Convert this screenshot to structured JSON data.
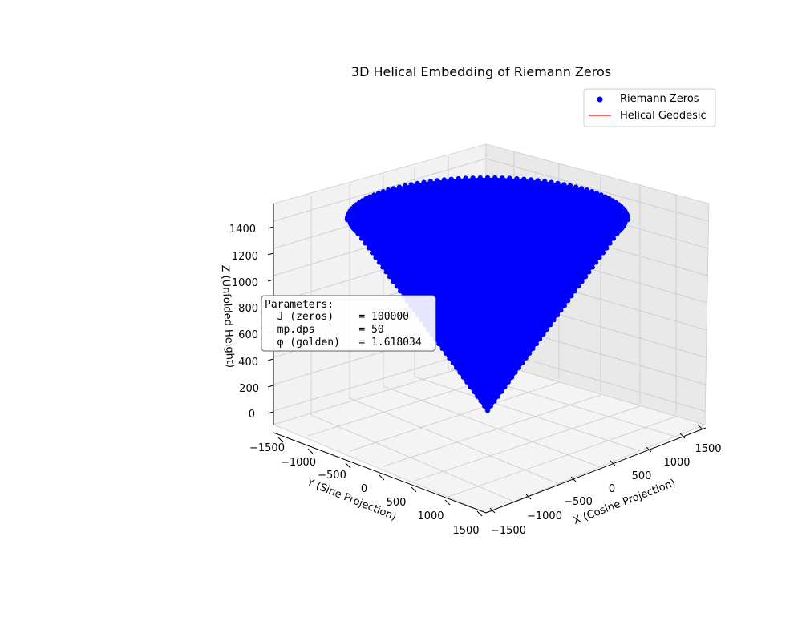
{
  "chart_data": {
    "type": "scatter",
    "projection": "3d",
    "title": "3D Helical Embedding of Riemann Zeros",
    "xlabel": "X (Cosine Projection)",
    "ylabel": "Y (Sine Projection)",
    "zlabel": "Z (Unfolded Height)",
    "xlim": [
      -1500,
      1500
    ],
    "ylim": [
      -1500,
      1500
    ],
    "zlim": [
      -100,
      1500
    ],
    "x_ticks": [
      -1500,
      -1000,
      -500,
      0,
      500,
      1000,
      1500
    ],
    "y_ticks": [
      -1500,
      -1000,
      -500,
      0,
      500,
      1000,
      1500
    ],
    "z_ticks": [
      0,
      200,
      400,
      600,
      800,
      1000,
      1200,
      1400
    ],
    "x_tick_labels": [
      "−1500",
      "−1000",
      "−500",
      "0",
      "500",
      "1000",
      "1500"
    ],
    "y_tick_labels": [
      "−1500",
      "−1000",
      "−500",
      "0",
      "500",
      "1000",
      "1500"
    ],
    "z_tick_labels": [
      "0",
      "200",
      "400",
      "600",
      "800",
      "1000",
      "1200",
      "1400"
    ],
    "grid": true,
    "legend_position": "top-right",
    "series": [
      {
        "name": "Riemann Zeros",
        "kind": "scatter",
        "color": "#0000ff",
        "shape": "cone",
        "z_max": 1400,
        "radius_max": 1400
      },
      {
        "name": "Helical Geodesic",
        "kind": "line",
        "color": "#ff0000"
      }
    ],
    "annotation": {
      "lines": [
        "Parameters:",
        "  J (zeros)    = 100000",
        "  mp.dps       = 50",
        "  φ (golden)   = 1.618034"
      ]
    }
  }
}
